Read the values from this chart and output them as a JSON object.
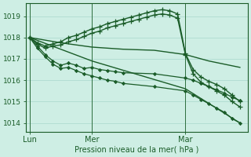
{
  "title": "Pression niveau de la mer( hPa )",
  "bg_color": "#ceeee4",
  "grid_color": "#a8d8cc",
  "line_color": "#1a5c28",
  "ylim": [
    1013.6,
    1019.6
  ],
  "yticks": [
    1014,
    1015,
    1016,
    1017,
    1018,
    1019
  ],
  "xtick_labels": [
    "Lun",
    "Mer",
    "Mar"
  ],
  "xtick_positions": [
    0,
    8,
    20
  ],
  "vline_positions": [
    0,
    8,
    20
  ],
  "xlim": [
    -0.5,
    28
  ],
  "series": [
    {
      "x": [
        0,
        1,
        2,
        3,
        4,
        5,
        6,
        7,
        8,
        9,
        10,
        11,
        12,
        13,
        14,
        15,
        16,
        17,
        18,
        19,
        20,
        21,
        22,
        23,
        24,
        25,
        26,
        27
      ],
      "y": [
        1018.0,
        1017.75,
        1017.6,
        1017.7,
        1017.8,
        1018.0,
        1018.1,
        1018.25,
        1018.4,
        1018.5,
        1018.65,
        1018.75,
        1018.85,
        1018.95,
        1019.05,
        1019.15,
        1019.25,
        1019.3,
        1019.25,
        1019.1,
        1017.25,
        1016.5,
        1016.15,
        1015.95,
        1015.8,
        1015.6,
        1015.3,
        1015.0
      ],
      "marker": "+",
      "lw": 1.0
    },
    {
      "x": [
        0,
        1,
        2,
        3,
        4,
        5,
        6,
        7,
        8,
        9,
        10,
        11,
        12,
        13,
        14,
        15,
        16,
        17,
        18,
        19,
        20,
        21,
        22,
        23,
        24,
        25,
        26,
        27
      ],
      "y": [
        1018.0,
        1017.7,
        1017.5,
        1017.6,
        1017.65,
        1017.8,
        1017.9,
        1018.05,
        1018.2,
        1018.3,
        1018.45,
        1018.55,
        1018.65,
        1018.75,
        1018.85,
        1018.95,
        1019.05,
        1019.1,
        1019.05,
        1018.9,
        1017.2,
        1016.3,
        1015.9,
        1015.7,
        1015.5,
        1015.3,
        1015.0,
        1014.75
      ],
      "marker": "+",
      "lw": 1.0
    },
    {
      "x": [
        0,
        4,
        8,
        12,
        16,
        20,
        23,
        27
      ],
      "y": [
        1018.0,
        1017.75,
        1017.55,
        1017.45,
        1017.4,
        1017.2,
        1016.9,
        1016.6
      ],
      "marker": null,
      "lw": 1.0
    },
    {
      "x": [
        0,
        1,
        2,
        3,
        4,
        5,
        6,
        7,
        8,
        9,
        10,
        11,
        12,
        16,
        20,
        21,
        22,
        23,
        24,
        25,
        26,
        27
      ],
      "y": [
        1018.0,
        1017.6,
        1017.2,
        1016.9,
        1016.7,
        1016.8,
        1016.7,
        1016.55,
        1016.6,
        1016.5,
        1016.45,
        1016.4,
        1016.35,
        1016.3,
        1016.1,
        1016.0,
        1015.85,
        1015.7,
        1015.55,
        1015.4,
        1015.2,
        1015.05
      ],
      "marker": "D",
      "lw": 0.9
    },
    {
      "x": [
        0,
        1,
        2,
        3,
        4,
        5,
        6,
        7,
        8,
        9,
        10,
        11,
        12,
        16,
        20,
        21,
        22,
        23,
        24,
        25,
        26,
        27
      ],
      "y": [
        1018.0,
        1017.5,
        1017.1,
        1016.75,
        1016.55,
        1016.6,
        1016.45,
        1016.3,
        1016.2,
        1016.1,
        1016.0,
        1015.95,
        1015.85,
        1015.7,
        1015.5,
        1015.3,
        1015.1,
        1014.9,
        1014.7,
        1014.5,
        1014.2,
        1014.0
      ],
      "marker": "D",
      "lw": 0.9
    },
    {
      "x": [
        0,
        8,
        20,
        27
      ],
      "y": [
        1018.0,
        1016.9,
        1015.6,
        1014.0
      ],
      "marker": null,
      "lw": 1.0
    }
  ]
}
